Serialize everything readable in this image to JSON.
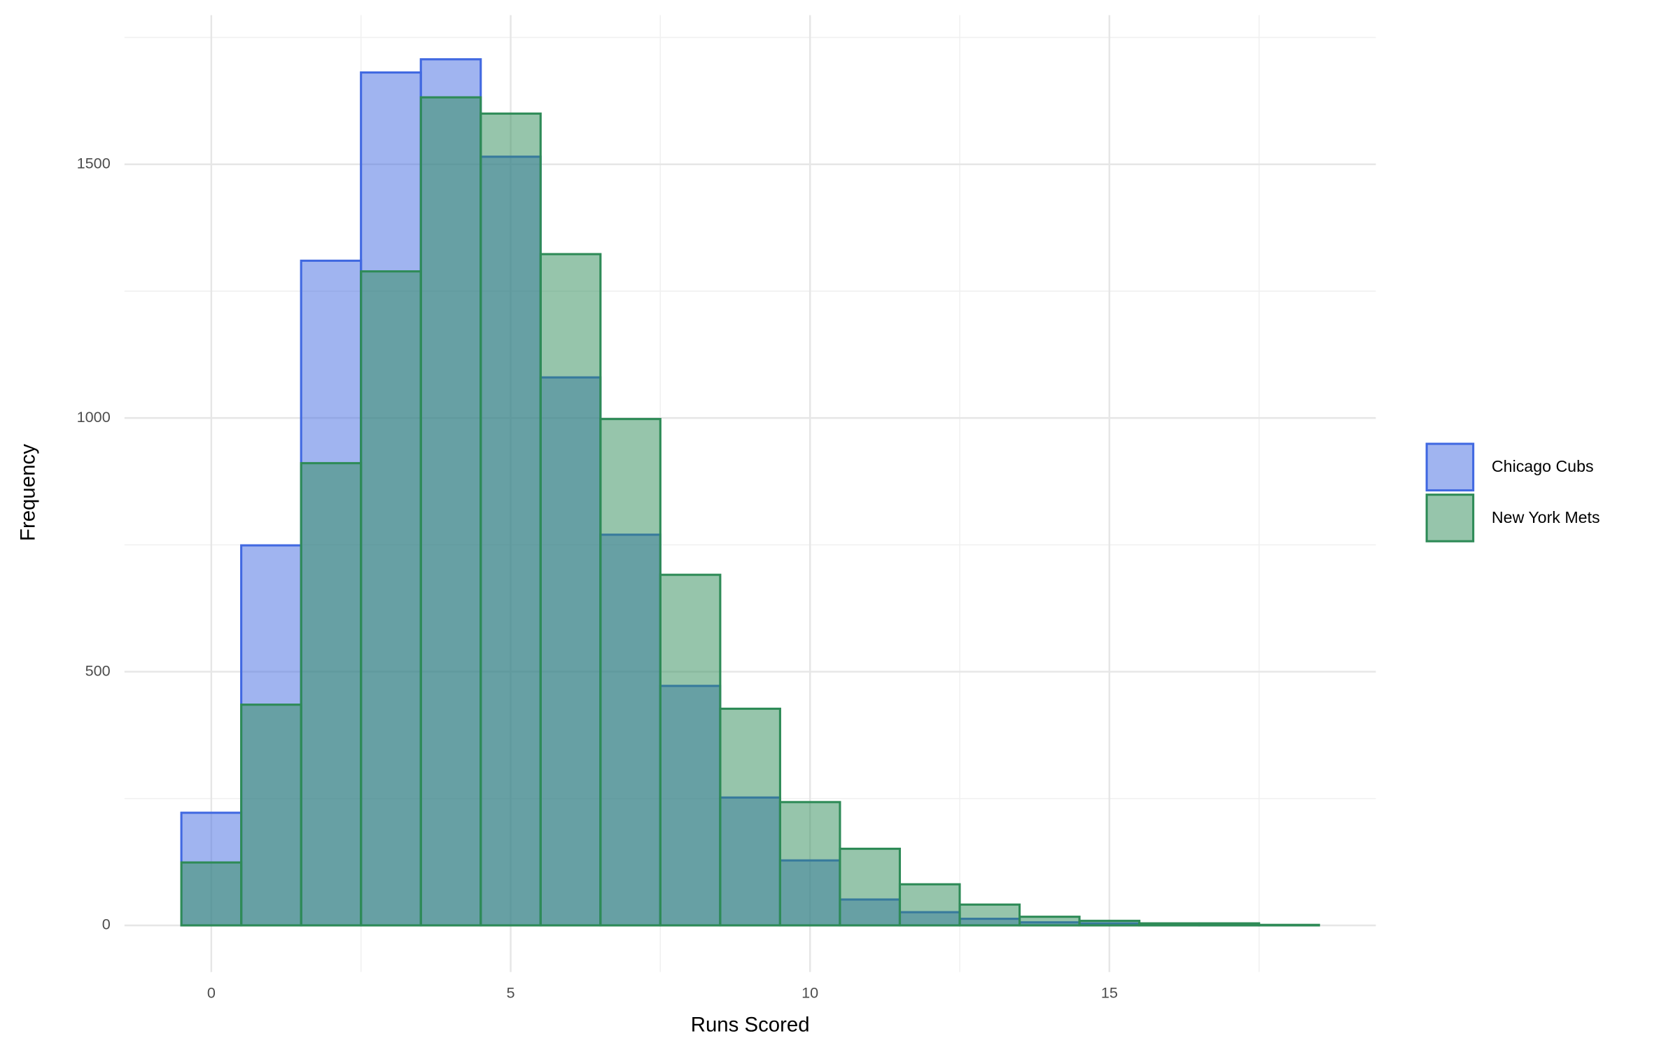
{
  "chart_data": {
    "type": "histogram",
    "x_label": "Runs Scored",
    "y_label": "Frequency",
    "bins": [
      -0.5,
      0.5,
      1.5,
      2.5,
      3.5,
      4.5,
      5.5,
      6.5,
      7.5,
      8.5,
      9.5,
      10.5,
      11.5,
      12.5,
      13.5,
      14.5,
      15.5,
      16.5,
      17.5,
      18.5
    ],
    "series": [
      {
        "name": "Chicago Cubs",
        "color": "#4169e1",
        "values": [
          222,
          749,
          1310,
          1681,
          1707,
          1515,
          1080,
          770,
          472,
          252,
          128,
          51,
          26,
          13,
          6,
          4,
          2,
          1,
          0
        ]
      },
      {
        "name": "New York Mets",
        "color": "#2e8b57",
        "values": [
          124,
          435,
          911,
          1289,
          1632,
          1600,
          1323,
          998,
          691,
          427,
          243,
          151,
          81,
          41,
          17,
          9,
          4,
          4,
          1
        ]
      }
    ],
    "xlim": [
      -1.45,
      19.45
    ],
    "ylim": [
      -92,
      1794
    ],
    "xticks": [
      0,
      5,
      10,
      15
    ],
    "yticks": [
      0,
      500,
      1000,
      1500
    ],
    "grid": true,
    "legend": "right"
  }
}
